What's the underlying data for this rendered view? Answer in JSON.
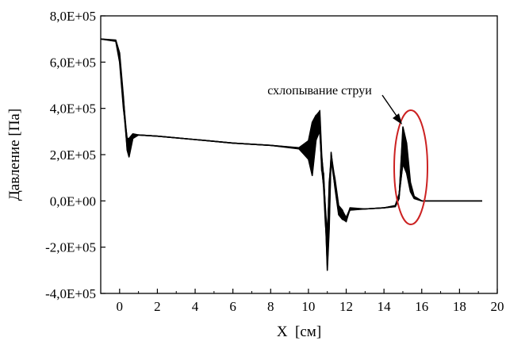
{
  "chart_data": {
    "type": "line",
    "title": "",
    "xlabel": "X  [см]",
    "ylabel": "Давление [Па]",
    "xlim": [
      -1,
      20
    ],
    "ylim": [
      -400000,
      800000
    ],
    "x_ticks": [
      0,
      2,
      4,
      6,
      8,
      10,
      12,
      14,
      16,
      18,
      20
    ],
    "x_tick_labels": [
      "0",
      "2",
      "4",
      "6",
      "8",
      "10",
      "12",
      "14",
      "16",
      "18",
      "20"
    ],
    "y_ticks": [
      -400000,
      -200000,
      0,
      200000,
      400000,
      600000,
      800000
    ],
    "y_tick_labels": [
      "-4,0E+05",
      "-2,0E+05",
      "0,0E+00",
      "2,0E+05",
      "4,0E+05",
      "6,0E+05",
      "8,0E+05"
    ],
    "grid": false,
    "legend": "none",
    "line_color": "#000000",
    "series": [
      {
        "x": [
          -1.0,
          -0.2,
          0.0,
          0.2,
          0.4,
          0.5,
          0.7,
          1.0,
          2.0,
          4.0,
          6.0,
          8.0,
          9.5,
          10.0,
          10.2,
          10.4,
          10.6,
          10.7,
          10.8,
          10.9,
          11.0,
          11.1,
          11.2,
          11.4,
          11.6,
          11.8,
          12.0,
          12.2,
          13.0,
          14.0,
          14.6,
          14.8,
          15.0,
          15.2,
          15.4,
          15.6,
          16.0,
          17.0,
          18.0,
          19.2
        ],
        "y": [
          700000,
          690000,
          600000,
          400000,
          270000,
          270000,
          290000,
          285000,
          280000,
          265000,
          250000,
          240000,
          230000,
          260000,
          340000,
          370000,
          300000,
          160000,
          60000,
          -100000,
          -200000,
          80000,
          170000,
          100000,
          -20000,
          -40000,
          -90000,
          -30000,
          -35000,
          -30000,
          -20000,
          30000,
          160000,
          120000,
          40000,
          10000,
          0,
          0,
          0,
          0
        ]
      },
      {
        "x": [
          -1.0,
          -0.2,
          0.0,
          0.2,
          0.4,
          0.5,
          0.7,
          1.0,
          2.0,
          4.0,
          6.0,
          8.0,
          9.5,
          10.0,
          10.2,
          10.4,
          10.6,
          10.7,
          10.8,
          10.9,
          11.0,
          11.1,
          11.2,
          11.4,
          11.6,
          11.8,
          12.0,
          12.2,
          13.0,
          14.0,
          14.6,
          14.8,
          15.0,
          15.2,
          15.4,
          15.6,
          16.0,
          17.0,
          18.0,
          19.2
        ],
        "y": [
          700000,
          695000,
          640000,
          450000,
          220000,
          190000,
          270000,
          285000,
          280000,
          265000,
          250000,
          240000,
          225000,
          180000,
          110000,
          260000,
          360000,
          130000,
          120000,
          -50000,
          -300000,
          -120000,
          210000,
          60000,
          -60000,
          -80000,
          -70000,
          -40000,
          -35000,
          -30000,
          -25000,
          10000,
          320000,
          250000,
          80000,
          20000,
          0,
          0,
          0,
          0
        ]
      },
      {
        "x": [
          -1.0,
          -0.2,
          0.0,
          0.2,
          0.4,
          0.5,
          0.7,
          1.0,
          2.0,
          4.0,
          6.0,
          8.0,
          9.5,
          10.0,
          10.2,
          10.4,
          10.6,
          10.7,
          10.8,
          10.9,
          11.0,
          11.1,
          11.2,
          11.4,
          11.6,
          11.8,
          12.0,
          12.2,
          13.0,
          14.0,
          14.6,
          14.8,
          15.0,
          15.2,
          15.4,
          15.6,
          16.0,
          17.0,
          18.0,
          19.2
        ],
        "y": [
          700000,
          692000,
          620000,
          420000,
          250000,
          230000,
          280000,
          285000,
          280000,
          265000,
          250000,
          240000,
          228000,
          230000,
          250000,
          330000,
          390000,
          200000,
          90000,
          -30000,
          -150000,
          40000,
          190000,
          80000,
          -40000,
          -60000,
          -80000,
          -35000,
          -35000,
          -30000,
          -22000,
          20000,
          240000,
          190000,
          60000,
          15000,
          0,
          0,
          0,
          0
        ]
      }
    ],
    "annotations": [
      {
        "text": "схлопывание струи",
        "x": 15.0,
        "y": 240000
      }
    ]
  }
}
